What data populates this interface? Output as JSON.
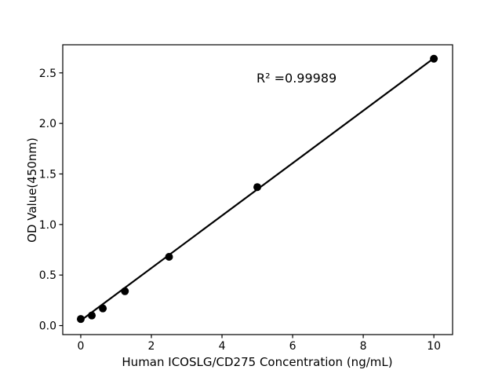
{
  "chart_data": {
    "type": "scatter",
    "title": "",
    "xlabel": "Human ICOSLG/CD275 Concentration (ng/mL)",
    "ylabel": "OD Value(450nm)",
    "annotation": "R² =0.99989",
    "points": [
      {
        "x": 0,
        "y": 0.065
      },
      {
        "x": 0.3125,
        "y": 0.1
      },
      {
        "x": 0.625,
        "y": 0.17
      },
      {
        "x": 1.25,
        "y": 0.34
      },
      {
        "x": 2.5,
        "y": 0.68
      },
      {
        "x": 5,
        "y": 1.37
      },
      {
        "x": 10,
        "y": 2.64
      }
    ],
    "fit_line": {
      "x1": 0,
      "y1": 0.05,
      "x2": 10,
      "y2": 2.645
    },
    "xticks": [
      0,
      2,
      4,
      6,
      8,
      10
    ],
    "xtick_labels": [
      "0",
      "2",
      "4",
      "6",
      "8",
      "10"
    ],
    "yticks": [
      0.0,
      0.5,
      1.0,
      1.5,
      2.0,
      2.5
    ],
    "ytick_labels": [
      "0.0",
      "0.5",
      "1.0",
      "1.5",
      "2.0",
      "2.5"
    ],
    "xlim": [
      -0.51,
      10.53
    ],
    "ylim": [
      -0.089,
      2.778
    ],
    "grid": false,
    "legend": null,
    "marker_color": "#000000",
    "line_color": "#000000",
    "axis_color": "#000000",
    "background_color": "#ffffff"
  }
}
